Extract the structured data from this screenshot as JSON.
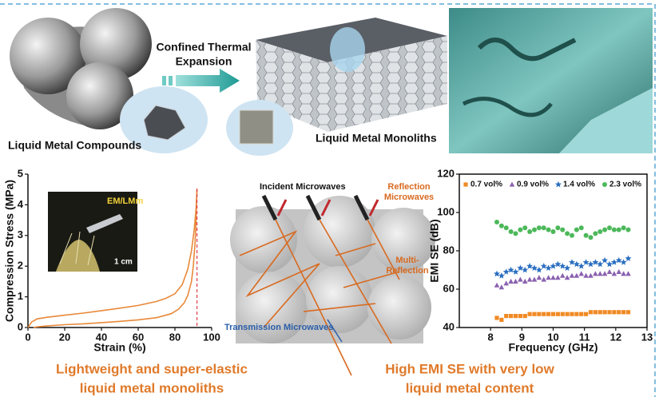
{
  "labels": {
    "compounds": "Liquid Metal Compounds",
    "monoliths": "Liquid Metal Monoliths",
    "process_line1": "Confined Thermal",
    "process_line2": "Expansion",
    "inset_title": "EM/LMm",
    "inset_scale": "1 cm",
    "incident": "Incident Microwaves",
    "reflection_line1": "Reflection",
    "reflection_line2": "Microwaves",
    "multi_line1": "Multi-",
    "multi_line2": "Reflection",
    "transmission": "Transmission Microwaves",
    "caption_left_line1": "Lightweight and super-elastic",
    "caption_left_line2": "liquid metal monoliths",
    "caption_right_line1": "High EMI SE with very low",
    "caption_right_line2": "liquid metal content"
  },
  "chart_data": [
    {
      "type": "line",
      "x_label": "Strain (%)",
      "y_label": "Compression Stress (MPa)",
      "xlim": [
        0,
        100
      ],
      "xticks": [
        0,
        20,
        40,
        60,
        80,
        100
      ],
      "ylim": [
        0,
        5
      ],
      "yticks": [
        0,
        1,
        2,
        3,
        4,
        5
      ],
      "vline": 92,
      "vline_color": "#e0404a",
      "series": [
        {
          "color": "#e8893a",
          "x": [
            0,
            2,
            5,
            10,
            20,
            30,
            40,
            50,
            60,
            70,
            75,
            80,
            84,
            87,
            89,
            90.5,
            91.5,
            92
          ],
          "values": [
            0,
            0.18,
            0.28,
            0.33,
            0.4,
            0.47,
            0.55,
            0.63,
            0.72,
            0.85,
            0.95,
            1.1,
            1.4,
            1.9,
            2.5,
            3.2,
            3.9,
            4.5
          ]
        },
        {
          "color": "#e8893a",
          "x": [
            92,
            91.5,
            91,
            90,
            89,
            87,
            85,
            82,
            78,
            70,
            60,
            50,
            40,
            30,
            20,
            10,
            5,
            3
          ],
          "values": [
            4.5,
            3.6,
            2.8,
            2.0,
            1.5,
            1.05,
            0.8,
            0.6,
            0.45,
            0.32,
            0.25,
            0.2,
            0.16,
            0.12,
            0.09,
            0.05,
            0.02,
            0
          ]
        }
      ]
    },
    {
      "type": "scatter",
      "x_label": "Frequency (GHz)",
      "y_label": "EMI SE (dB)",
      "xlim": [
        7,
        13
      ],
      "xticks": [
        8,
        9,
        10,
        11,
        12,
        13
      ],
      "ylim": [
        40,
        120
      ],
      "yticks": [
        40,
        60,
        80,
        100,
        120
      ],
      "x": [
        8.2,
        8.35,
        8.5,
        8.65,
        8.8,
        8.95,
        9.1,
        9.25,
        9.4,
        9.55,
        9.7,
        9.85,
        10,
        10.15,
        10.3,
        10.45,
        10.6,
        10.75,
        10.9,
        11.05,
        11.2,
        11.35,
        11.5,
        11.65,
        11.8,
        11.95,
        12.1,
        12.25,
        12.4
      ],
      "series": [
        {
          "name": "0.7 vol%",
          "color": "#f08a24",
          "marker": "square",
          "values": [
            45,
            44,
            46,
            46,
            46,
            46,
            46,
            47,
            47,
            47,
            47,
            47,
            47,
            47,
            47,
            47,
            47,
            47,
            47,
            47,
            48,
            48,
            48,
            48,
            48,
            48,
            48,
            48,
            48
          ]
        },
        {
          "name": "0.9 vol%",
          "color": "#8a62b0",
          "marker": "triangle",
          "values": [
            62,
            61,
            63,
            64,
            64,
            65,
            64,
            65,
            65,
            66,
            65,
            66,
            66,
            66,
            67,
            66,
            67,
            67,
            68,
            67,
            67,
            68,
            68,
            68,
            69,
            68,
            69,
            68,
            68
          ]
        },
        {
          "name": "1.4 vol%",
          "color": "#2a6fc0",
          "marker": "star",
          "values": [
            68,
            67,
            69,
            70,
            69,
            71,
            70,
            72,
            71,
            70,
            72,
            71,
            72,
            73,
            72,
            71,
            74,
            73,
            72,
            74,
            73,
            74,
            73,
            75,
            73,
            74,
            75,
            74,
            76
          ]
        },
        {
          "name": "2.3 vol%",
          "color": "#4cb85a",
          "marker": "circle",
          "values": [
            95,
            93,
            92,
            90,
            89,
            91,
            92,
            90,
            91,
            92,
            92,
            91,
            90,
            92,
            91,
            89,
            88,
            91,
            92,
            88,
            87,
            89,
            90,
            91,
            92,
            91,
            91,
            92,
            91
          ]
        }
      ]
    }
  ]
}
